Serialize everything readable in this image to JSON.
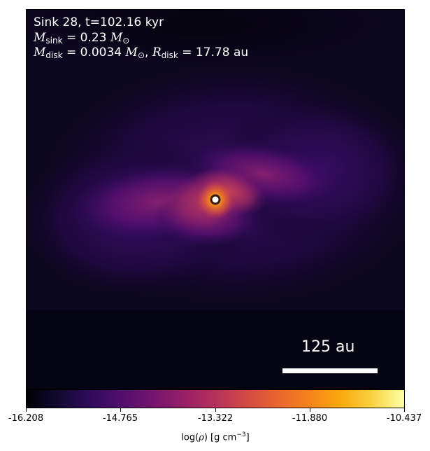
{
  "figure": {
    "title": "Sink 28, t=102.16 kyr",
    "sink_mass": {
      "symbol": "M",
      "subscript": "sink",
      "value": "= 0.23",
      "unit": "M",
      "unit_subscript": "⊙"
    },
    "disk": {
      "mass_symbol": "M",
      "mass_subscript": "disk",
      "mass_value": "= 0.0034",
      "mass_unit": "M",
      "mass_unit_subscript": "⊙",
      "separator": ",",
      "radius_symbol": "R",
      "radius_subscript": "disk",
      "radius_value": "= 17.78",
      "radius_unit": "au"
    },
    "scalebar": {
      "label": "125 au"
    },
    "sink_marker": {
      "fill_color": "#ffffff",
      "ring_color": "#3a1c0a",
      "glow_color": "#f7901e"
    }
  },
  "colorbar": {
    "colormap": "inferno",
    "min": -16.208,
    "max": -10.437,
    "tick_labels": [
      "-16.208",
      "-14.765",
      "-13.322",
      "-11.880",
      "-10.437"
    ],
    "axis_label": {
      "prefix": "log(",
      "rho": "ρ",
      "middle": ") [g cm",
      "exponent": "−3",
      "suffix": "]"
    }
  }
}
